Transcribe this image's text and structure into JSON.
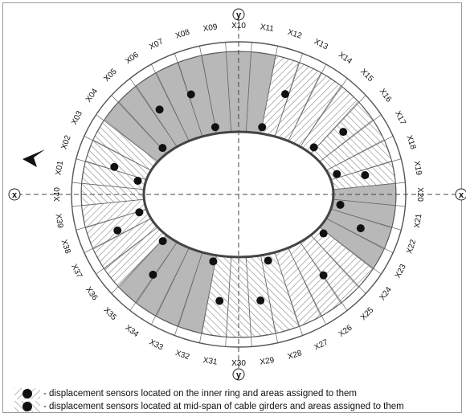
{
  "axis_labels": {
    "x": "x",
    "y": "y"
  },
  "girder_labels": [
    "X01",
    "X02",
    "X03",
    "X04",
    "X05",
    "X06",
    "X07",
    "X08",
    "X09",
    "X10",
    "X11",
    "X12",
    "X13",
    "X14",
    "X15",
    "X16",
    "X17",
    "X18",
    "X19",
    "X20",
    "X21",
    "X22",
    "X23",
    "X24",
    "X25",
    "X26",
    "X27",
    "X28",
    "X29",
    "X30",
    "X31",
    "X32",
    "X33",
    "X34",
    "X35",
    "X36",
    "X37",
    "X38",
    "X39",
    "X40"
  ],
  "legend": [
    {
      "text": "- displacement sensors located on the inner ring and areas assigned to them",
      "pattern": "inner"
    },
    {
      "text": "- displacement sensors located at mid-span of cable girders and areas assigned to them",
      "pattern": "mid"
    }
  ],
  "colors": {
    "shade": "#b8b8b8",
    "line": "#555555",
    "sensor": "#111111"
  }
}
